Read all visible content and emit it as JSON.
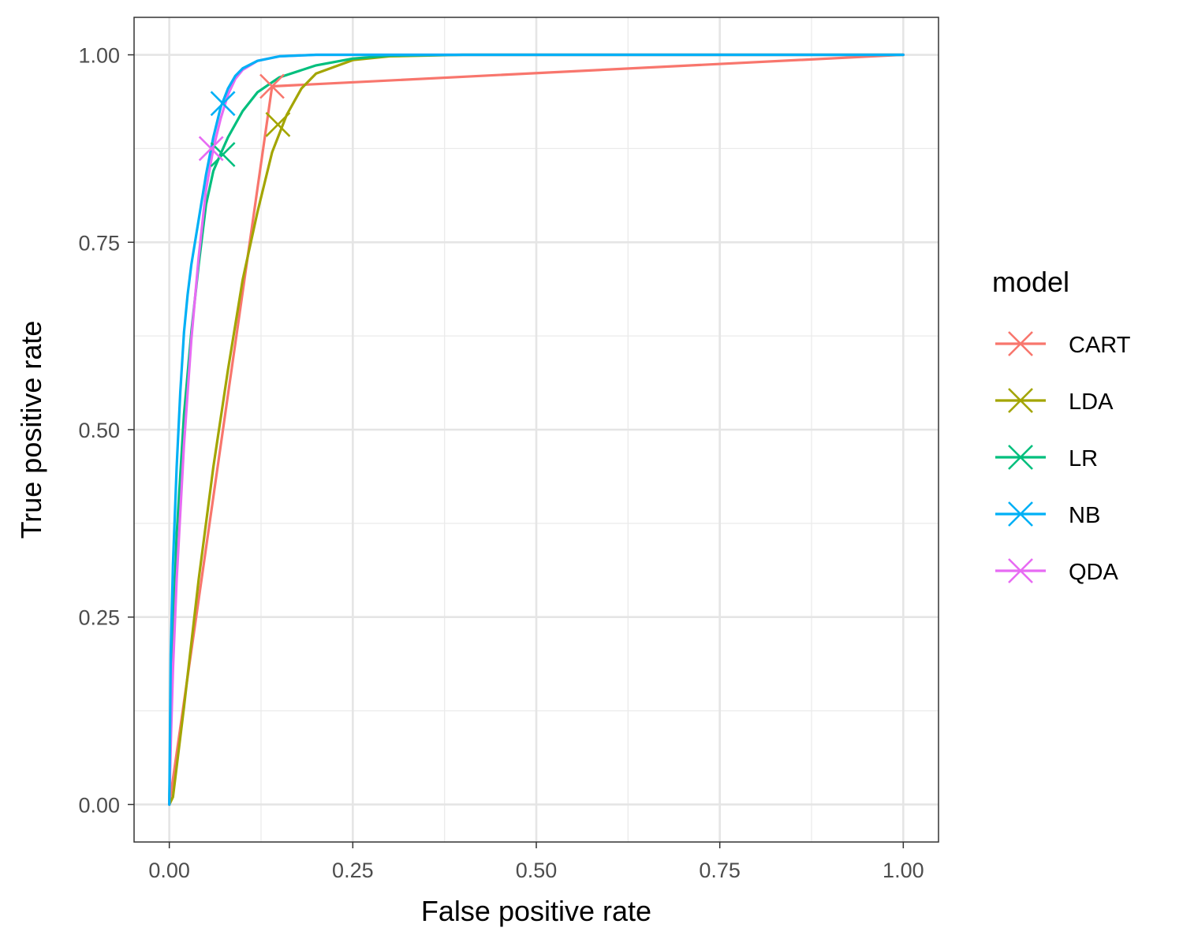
{
  "chart_data": {
    "type": "line",
    "title": "",
    "xlabel": "False positive rate",
    "ylabel": "True positive rate",
    "xlim": [
      -0.048,
      1.048
    ],
    "ylim": [
      -0.05,
      1.05
    ],
    "x_ticks": [
      "0.00",
      "0.25",
      "0.50",
      "0.75",
      "1.00"
    ],
    "y_ticks": [
      "0.00",
      "0.25",
      "0.50",
      "0.75",
      "1.00"
    ],
    "grid": true,
    "legend": {
      "title": "model",
      "position": "right",
      "entries": [
        "CART",
        "LDA",
        "LR",
        "NB",
        "QDA"
      ]
    },
    "series": [
      {
        "name": "CART",
        "color": "#F8766D",
        "x": [
          0,
          0.14,
          1
        ],
        "y": [
          0,
          0.958,
          1
        ],
        "marker": {
          "x": 0.14,
          "y": 0.958
        }
      },
      {
        "name": "LDA",
        "color": "#A3A500",
        "x": [
          0,
          0.005,
          0.02,
          0.04,
          0.06,
          0.08,
          0.1,
          0.12,
          0.14,
          0.16,
          0.18,
          0.2,
          0.25,
          0.3,
          0.4,
          0.5,
          1
        ],
        "y": [
          0,
          0.01,
          0.13,
          0.3,
          0.45,
          0.58,
          0.7,
          0.79,
          0.87,
          0.92,
          0.955,
          0.975,
          0.993,
          0.998,
          1,
          1,
          1
        ],
        "marker": {
          "x": 0.148,
          "y": 0.907
        }
      },
      {
        "name": "LR",
        "color": "#00BF7D",
        "x": [
          0,
          0.002,
          0.005,
          0.01,
          0.02,
          0.03,
          0.04,
          0.05,
          0.06,
          0.07,
          0.08,
          0.1,
          0.12,
          0.15,
          0.2,
          0.25,
          0.3,
          0.4,
          1
        ],
        "y": [
          0,
          0.12,
          0.22,
          0.36,
          0.52,
          0.63,
          0.72,
          0.8,
          0.845,
          0.868,
          0.89,
          0.925,
          0.95,
          0.97,
          0.986,
          0.995,
          0.999,
          1,
          1
        ],
        "marker": {
          "x": 0.073,
          "y": 0.867
        }
      },
      {
        "name": "NB",
        "color": "#00B0F6",
        "x": [
          0,
          0.002,
          0.005,
          0.01,
          0.015,
          0.02,
          0.025,
          0.03,
          0.04,
          0.05,
          0.06,
          0.07,
          0.08,
          0.09,
          0.1,
          0.12,
          0.15,
          0.2,
          0.3,
          1
        ],
        "y": [
          0,
          0.2,
          0.32,
          0.45,
          0.55,
          0.63,
          0.68,
          0.72,
          0.78,
          0.84,
          0.89,
          0.93,
          0.955,
          0.972,
          0.982,
          0.992,
          0.998,
          1,
          1,
          1
        ],
        "marker": {
          "x": 0.073,
          "y": 0.935
        }
      },
      {
        "name": "QDA",
        "color": "#E76BF3",
        "x": [
          0,
          0.002,
          0.005,
          0.01,
          0.02,
          0.03,
          0.04,
          0.05,
          0.06,
          0.07,
          0.08,
          0.09,
          0.1,
          0.12,
          0.15,
          0.2,
          0.3,
          1
        ],
        "y": [
          0,
          0.08,
          0.18,
          0.3,
          0.48,
          0.62,
          0.73,
          0.82,
          0.875,
          0.915,
          0.947,
          0.968,
          0.98,
          0.992,
          0.998,
          1,
          1,
          1
        ],
        "marker": {
          "x": 0.057,
          "y": 0.875
        }
      }
    ]
  }
}
